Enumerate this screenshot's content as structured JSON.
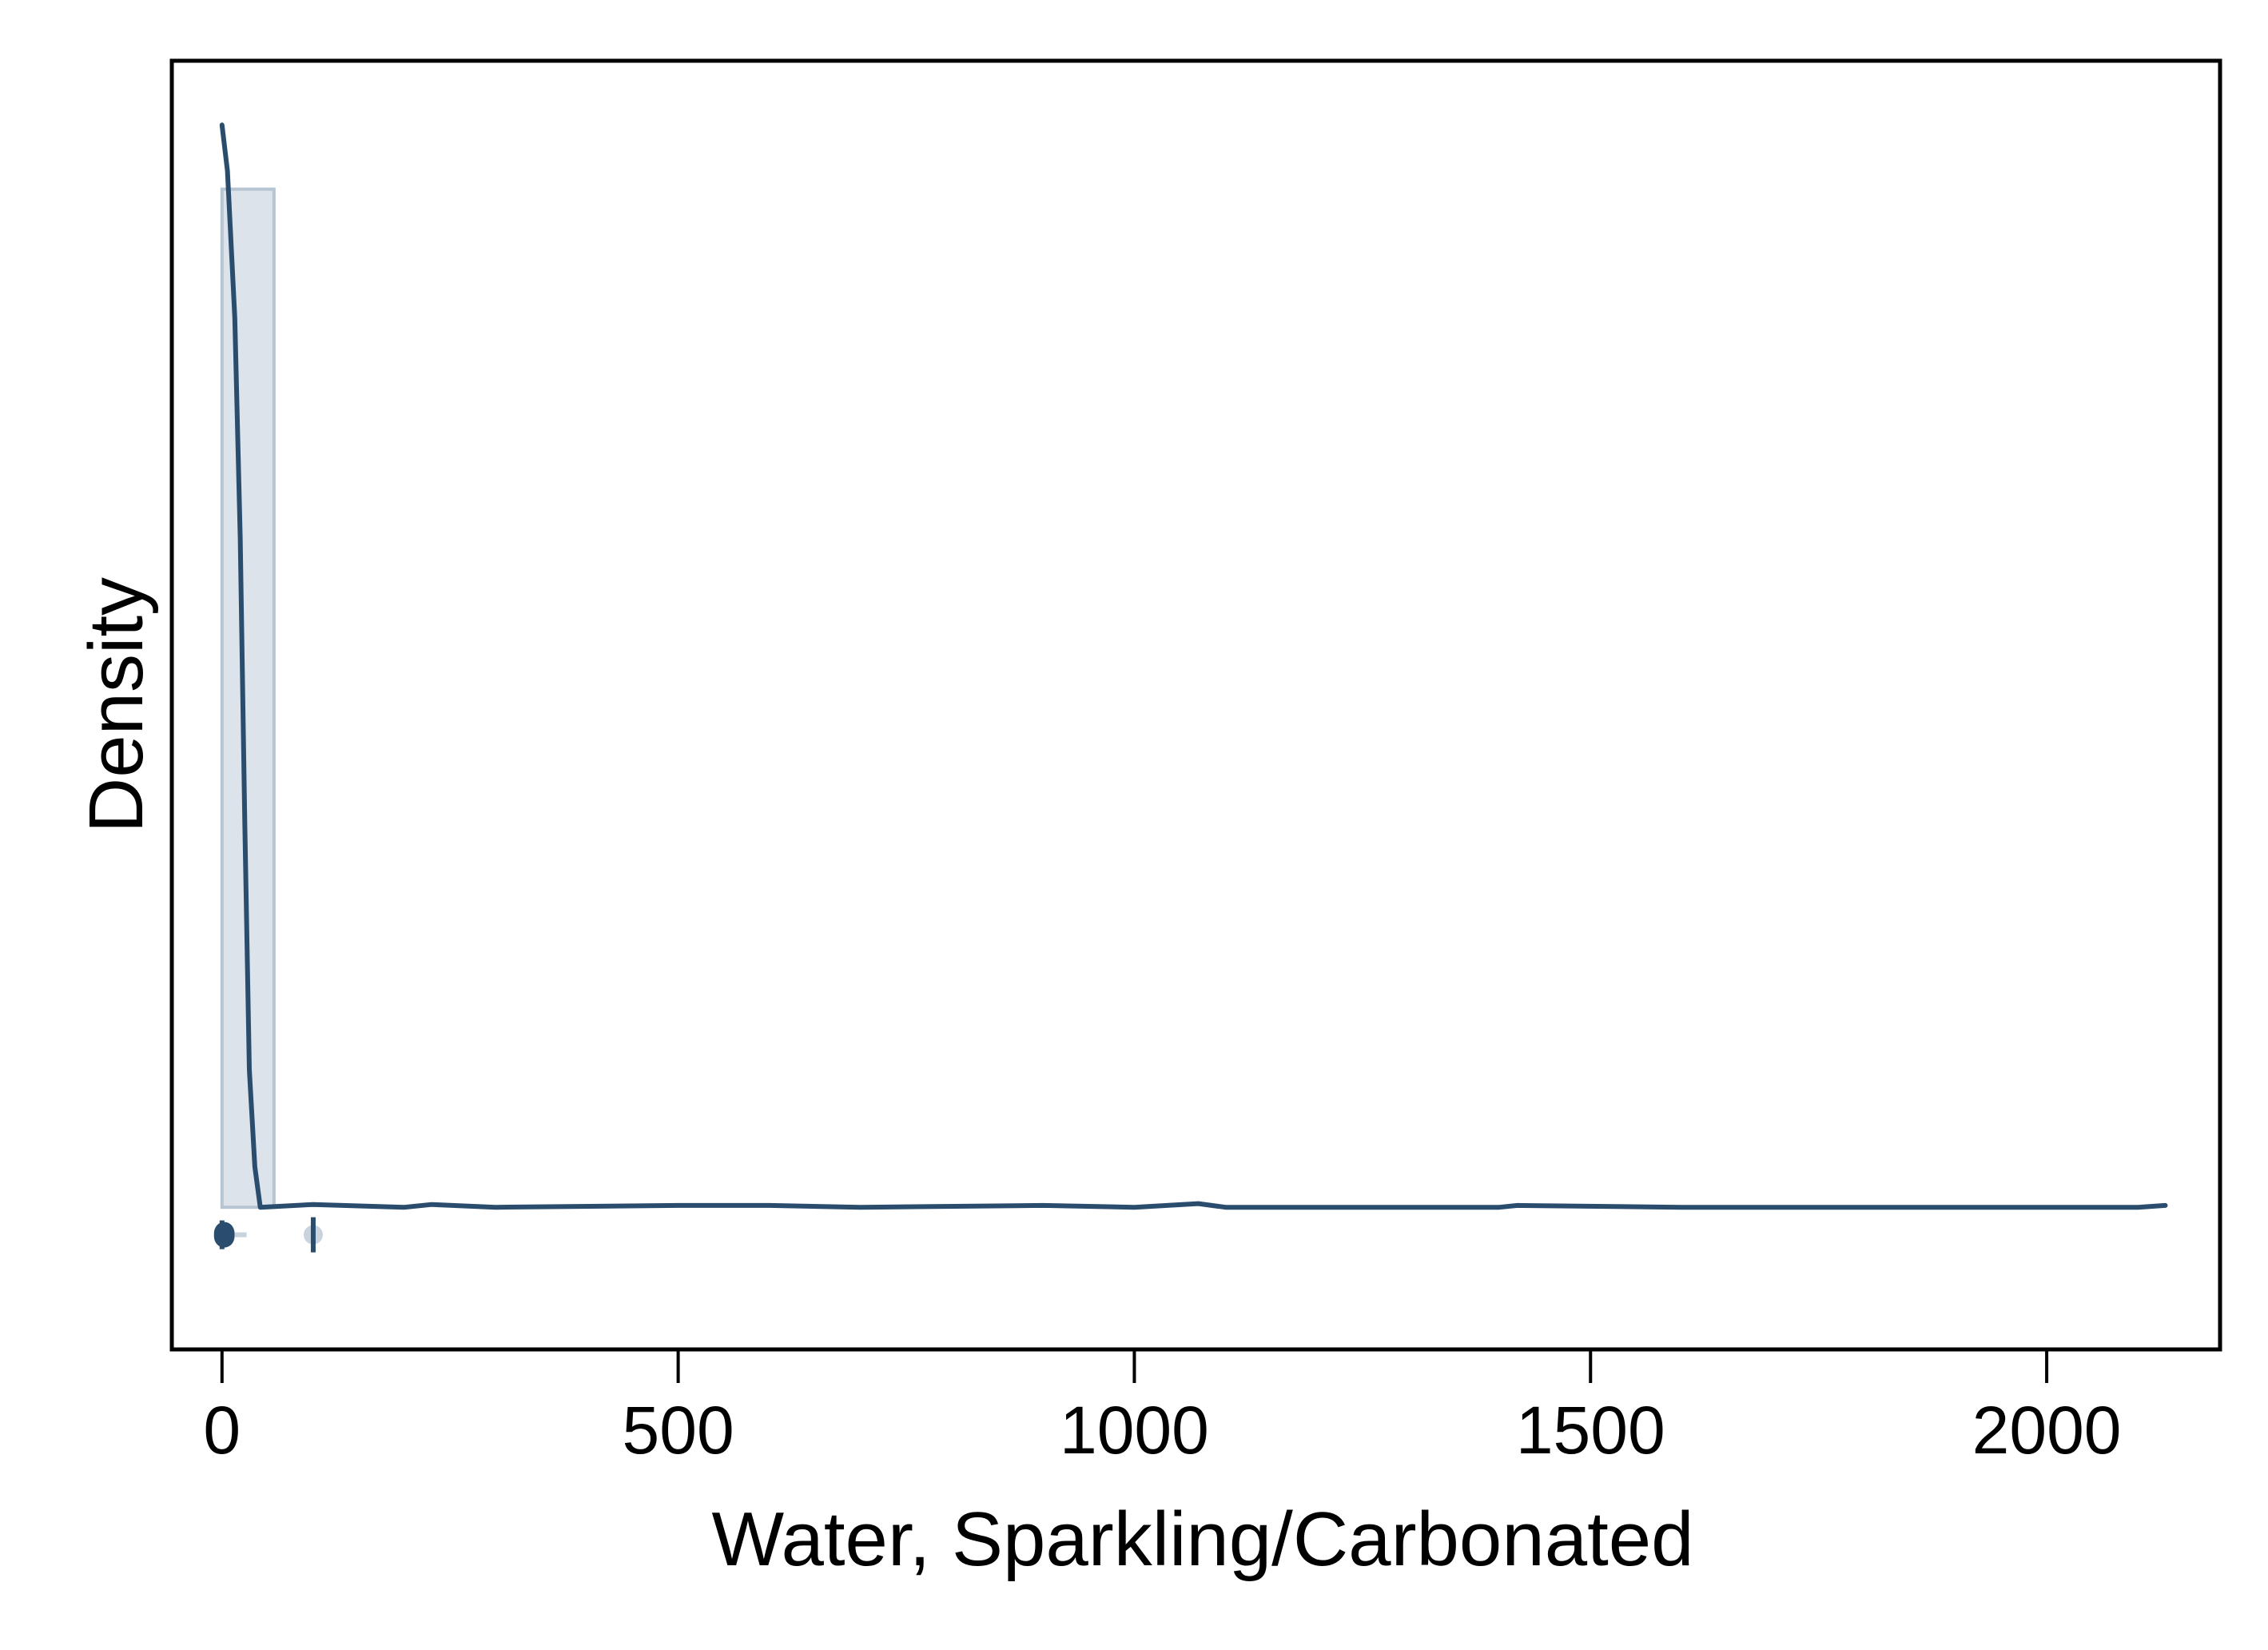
{
  "chart_data": {
    "type": "histogram",
    "xlabel": "Water, Sparkling/Carbonated",
    "ylabel": "Density",
    "xlim": [
      -55,
      2190
    ],
    "ylim": [
      -0.00155,
      0.0125
    ],
    "x_ticks": [
      0,
      500,
      1000,
      1500,
      2000
    ],
    "x_tick_labels": [
      "0",
      "500",
      "1000",
      "1500",
      "2000"
    ],
    "y_ticks_shown": false,
    "grid": false,
    "legend": "none",
    "colors": {
      "line": "#2a4d6e",
      "bar_fill": "#dde3ea",
      "bar_edge": "#b7c5d3",
      "frame": "#000000"
    },
    "histogram": {
      "bins": [
        {
          "x0": 0,
          "x1": 57,
          "density": 0.0111
        }
      ]
    },
    "kde": {
      "x": [
        0,
        6,
        14,
        20,
        25,
        30,
        36,
        42,
        100,
        200,
        230,
        300,
        500,
        600,
        700,
        900,
        1000,
        1070,
        1100,
        1400,
        1420,
        1600,
        1800,
        2000,
        2100,
        2130
      ],
      "y": [
        0.0118,
        0.0113,
        0.0097,
        0.0073,
        0.0042,
        0.0015,
        0.00044,
        0.0,
        3e-05,
        0.0,
        3e-05,
        0.0,
        2e-05,
        2e-05,
        0.0,
        2e-05,
        0.0,
        4e-05,
        0.0,
        0.0,
        2e-05,
        0.0,
        0.0,
        0.0,
        0.0,
        2e-05
      ]
    },
    "boxplot": {
      "y": -0.0003,
      "q1": 0,
      "median": 0,
      "q3": 5,
      "whisker_low": 0,
      "whisker_high": 27,
      "outliers": [
        100
      ]
    }
  }
}
